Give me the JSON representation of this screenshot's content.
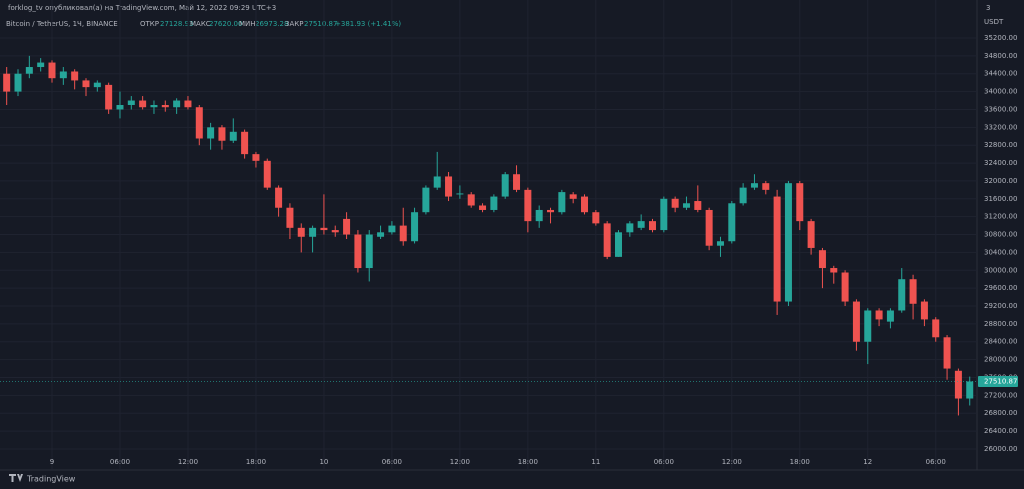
{
  "chart_data": {
    "type": "candlestick",
    "publisher": "forklog_tv опубликовал(а) на TradingView.com, Май 12, 2022 09:29 UTC+3",
    "legend": {
      "symbol": "Bitcoin / TetherUS, 1Ч, BINANCE",
      "open_label": "ОТКР",
      "open": "27128.93",
      "high_label": "МАКС",
      "high": "27620.00",
      "low_label": "МИН",
      "low": "26973.28",
      "close_label": "ЗАКР",
      "close": "27510.87",
      "change": "+381.93 (+1.41%)"
    },
    "currency": "USDT",
    "axis_corner": "3",
    "brand": "TradingView",
    "up_color": "#26a69a",
    "down_color": "#ef5350",
    "grid": true,
    "categories": [
      null,
      null,
      null,
      null,
      "9",
      null,
      null,
      null,
      null,
      null,
      "06:00",
      null,
      null,
      null,
      null,
      null,
      "12:00",
      null,
      null,
      null,
      null,
      null,
      "18:00",
      null,
      null,
      null,
      null,
      null,
      "10",
      null,
      null,
      null,
      null,
      null,
      "06:00",
      null,
      null,
      null,
      null,
      null,
      "12:00",
      null,
      null,
      null,
      null,
      null,
      "18:00",
      null,
      null,
      null,
      null,
      null,
      "11",
      null,
      null,
      null,
      null,
      null,
      "06:00",
      null,
      null,
      null,
      null,
      null,
      "12:00",
      null,
      null,
      null,
      null,
      null,
      "18:00",
      null,
      null,
      null,
      null,
      null,
      "12",
      null,
      null,
      null,
      null,
      null,
      "06:00",
      null,
      null,
      null
    ],
    "open": [
      34400,
      34000,
      34400,
      34550,
      34650,
      34300,
      34450,
      34250,
      34100,
      34150,
      33600,
      33700,
      33800,
      33650,
      33700,
      33650,
      33800,
      33650,
      32950,
      33200,
      32900,
      33100,
      32600,
      32450,
      31850,
      31400,
      30950,
      30750,
      30950,
      30900,
      31150,
      30800,
      30050,
      30750,
      30850,
      31000,
      30650,
      31300,
      31850,
      32100,
      31700,
      31700,
      31450,
      31350,
      31650,
      32150,
      31800,
      31100,
      31350,
      31300,
      31700,
      31650,
      31300,
      31050,
      30300,
      30850,
      30950,
      31100,
      30900,
      31600,
      31400,
      31550,
      31350,
      30550,
      30650,
      31500,
      31850,
      31950,
      31650,
      29300,
      31950,
      31100,
      30450,
      30050,
      29950,
      29300,
      28400,
      29100,
      28850,
      29100,
      29800,
      29300,
      28900,
      28500,
      27750,
      27128.93
    ],
    "high": [
      34550,
      34500,
      34800,
      34750,
      34700,
      34550,
      34500,
      34300,
      34250,
      34200,
      34000,
      33900,
      33900,
      33800,
      33800,
      33850,
      33900,
      33700,
      33300,
      33250,
      33400,
      33150,
      32650,
      32500,
      31900,
      31500,
      31050,
      31000,
      31700,
      31000,
      31300,
      30900,
      30900,
      31000,
      31100,
      31400,
      31400,
      31900,
      32650,
      32200,
      31900,
      31750,
      31500,
      31700,
      32200,
      32350,
      31850,
      31450,
      31400,
      31800,
      31750,
      31700,
      31350,
      31100,
      30900,
      31100,
      31250,
      31150,
      31650,
      31650,
      31650,
      31900,
      31400,
      30750,
      31550,
      31950,
      32150,
      32000,
      31800,
      32000,
      32000,
      31150,
      30500,
      30100,
      30000,
      29350,
      29150,
      29150,
      29150,
      30050,
      29900,
      29350,
      28950,
      28550,
      27800,
      27620
    ],
    "low": [
      33700,
      33900,
      34300,
      34450,
      34200,
      34150,
      34050,
      33900,
      34000,
      33500,
      33400,
      33600,
      33600,
      33500,
      33550,
      33500,
      33600,
      32800,
      32700,
      32700,
      32850,
      32500,
      32300,
      31800,
      31200,
      30700,
      30400,
      30400,
      30800,
      30750,
      30700,
      29950,
      29750,
      30700,
      30800,
      30550,
      30600,
      31250,
      31800,
      31550,
      31600,
      31400,
      31300,
      31300,
      31600,
      31750,
      30850,
      30950,
      31050,
      31250,
      31500,
      31250,
      31000,
      30250,
      30300,
      30750,
      30900,
      30850,
      30850,
      31300,
      31350,
      31300,
      30450,
      30300,
      30600,
      31450,
      31800,
      31700,
      29000,
      29200,
      30900,
      30350,
      29600,
      29700,
      29200,
      28200,
      27900,
      28750,
      28700,
      29050,
      28900,
      28750,
      28400,
      27550,
      26750,
      26973.28
    ],
    "close": [
      34000,
      34400,
      34550,
      34650,
      34300,
      34450,
      34250,
      34100,
      34200,
      33600,
      33700,
      33800,
      33650,
      33700,
      33650,
      33800,
      33650,
      32950,
      33200,
      32900,
      33100,
      32600,
      32450,
      31850,
      31400,
      30950,
      30750,
      30950,
      30900,
      30850,
      30800,
      30050,
      30800,
      30850,
      31000,
      30650,
      31300,
      31850,
      32100,
      31650,
      31720,
      31450,
      31350,
      31650,
      32150,
      31800,
      31100,
      31350,
      31300,
      31750,
      31600,
      31300,
      31050,
      30300,
      30850,
      31050,
      31100,
      30900,
      31600,
      31400,
      31500,
      31350,
      30550,
      30650,
      31500,
      31850,
      31950,
      31800,
      29300,
      31950,
      31100,
      30500,
      30050,
      29950,
      29300,
      28400,
      29100,
      28900,
      29100,
      29800,
      29250,
      28900,
      28500,
      27800,
      27128.93,
      27510.87
    ],
    "ylim": [
      25708,
      35737
    ],
    "yticks": [
      {
        "value": 26000,
        "label": "26000.00"
      },
      {
        "value": 26400,
        "label": "26400.00"
      },
      {
        "value": 26800,
        "label": "26800.00"
      },
      {
        "value": 27200,
        "label": "27200.00"
      },
      {
        "value": 27600,
        "label": "27600.00"
      },
      {
        "value": 28000,
        "label": "28000.00"
      },
      {
        "value": 28400,
        "label": "28400.00"
      },
      {
        "value": 28800,
        "label": "28800.00"
      },
      {
        "value": 29200,
        "label": "29200.00"
      },
      {
        "value": 29600,
        "label": "29600.00"
      },
      {
        "value": 30000,
        "label": "30000.00"
      },
      {
        "value": 30400,
        "label": "30400.00"
      },
      {
        "value": 30800,
        "label": "30800.00"
      },
      {
        "value": 31200,
        "label": "31200.00"
      },
      {
        "value": 31600,
        "label": "31600.00"
      },
      {
        "value": 32000,
        "label": "32000.00"
      },
      {
        "value": 32400,
        "label": "32400.00"
      },
      {
        "value": 32800,
        "label": "32800.00"
      },
      {
        "value": 33200,
        "label": "33200.00"
      },
      {
        "value": 33600,
        "label": "33600.00"
      },
      {
        "value": 34000,
        "label": "34000.00"
      },
      {
        "value": 34400,
        "label": "34400.00"
      },
      {
        "value": 34800,
        "label": "34800.00"
      },
      {
        "value": 35200,
        "label": "35200.00"
      }
    ]
  }
}
